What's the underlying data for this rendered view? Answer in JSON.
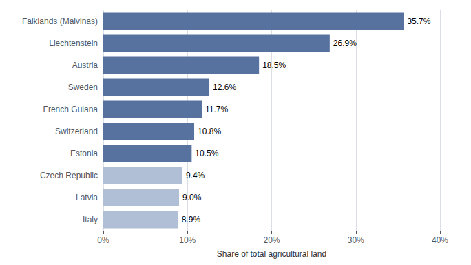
{
  "chart_data": {
    "type": "bar",
    "orientation": "horizontal",
    "categories": [
      "Italy",
      "Latvia",
      "Czech Republic",
      "Estonia",
      "Switzerland",
      "French Guiana",
      "Sweden",
      "Austria",
      "Liechtenstein",
      "Falklands (Malvinas)"
    ],
    "values": [
      8.9,
      9.0,
      9.4,
      10.5,
      10.8,
      11.7,
      12.6,
      18.5,
      26.9,
      35.7
    ],
    "value_labels": [
      "8.9%",
      "9.0%",
      "9.4%",
      "10.5%",
      "10.8%",
      "11.7%",
      "12.6%",
      "18.5%",
      "26.9%",
      "35.7%"
    ],
    "data_labels": true,
    "colors": [
      "#b0bfd5",
      "#b0bfd5",
      "#b0bfd5",
      "#5872a0",
      "#5872a0",
      "#5872a0",
      "#5872a0",
      "#5872a0",
      "#5872a0",
      "#5872a0"
    ],
    "xlabel": "Share of total agricultural land",
    "xlim": [
      0,
      40
    ],
    "xticks": [
      {
        "value": 0,
        "label": "0%"
      },
      {
        "value": 10,
        "label": "10%"
      },
      {
        "value": 20,
        "label": "20%"
      },
      {
        "value": 30,
        "label": "30%"
      },
      {
        "value": 40,
        "label": "40%"
      }
    ],
    "grid": true
  }
}
